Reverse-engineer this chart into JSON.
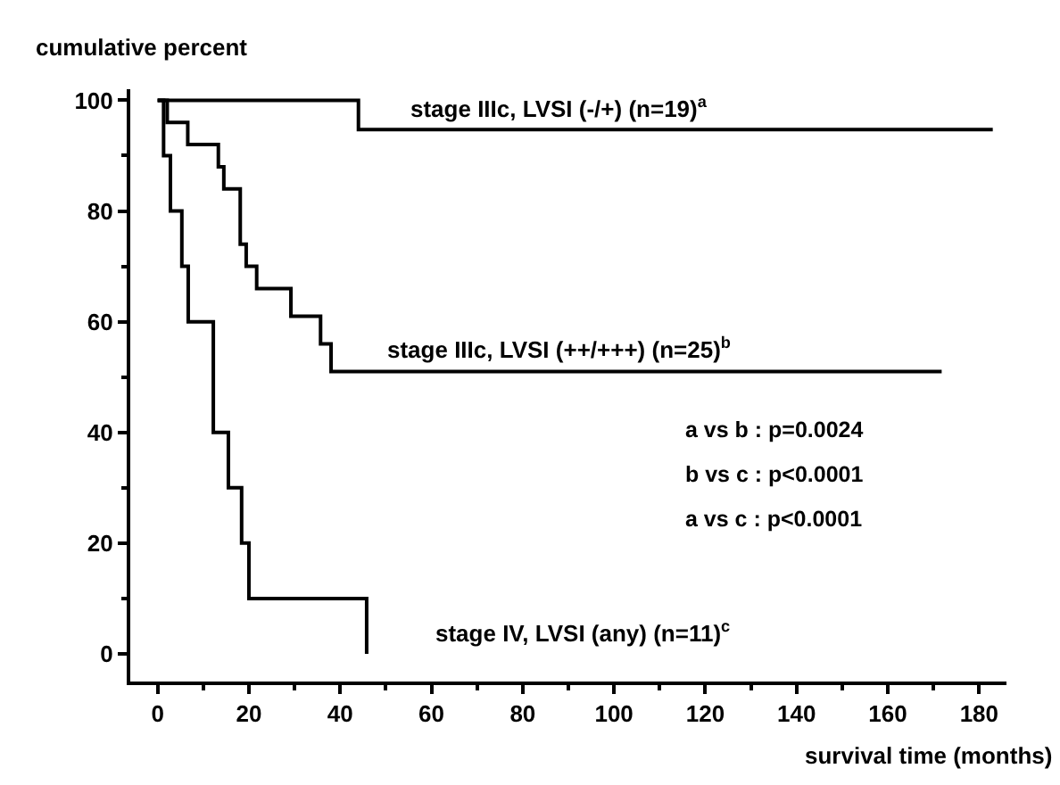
{
  "chart_data": {
    "type": "step",
    "ylabel": "cumulative percent",
    "xlabel": "survival time (months)",
    "series": [
      {
        "name": "stage IIIc, LVSI (-/+) (n=19)$^{a}$",
        "color": "#000000",
        "x": [
          0,
          44,
          183
        ],
        "values": [
          100,
          94.7,
          94.7
        ]
      },
      {
        "name": "stage IIIc, LVSI (++/+++) (n=25)$^{b}$",
        "color": "#000000",
        "x": [
          0,
          2.1,
          6.6,
          13.3,
          14.5,
          18.1,
          19.4,
          21.7,
          29.2,
          35.7,
          38.0,
          171.8
        ],
        "values": [
          100,
          96,
          92,
          88,
          84,
          74,
          70,
          66,
          61,
          56,
          51,
          51
        ]
      },
      {
        "name": "stage IV, LVSI (any) (n=11)$^{c}$",
        "color": "#000000",
        "x": [
          0,
          1.3,
          2.8,
          5.3,
          6.7,
          12.2,
          15.5,
          18.4,
          20.0,
          45.8
        ],
        "values": [
          100,
          90,
          80,
          70,
          60,
          40,
          30,
          20,
          10,
          0
        ]
      }
    ],
    "annotations": [
      "a vs b : p=0.0024",
      "b vs c : p<0.0001",
      "a vs c : p<0.0001"
    ],
    "xlim": [
      -6,
      186
    ],
    "xticks": [
      0,
      20,
      40,
      60,
      80,
      100,
      120,
      140,
      160,
      180
    ],
    "ylim": [
      -5,
      102
    ],
    "yticks": [
      0,
      20,
      40,
      60,
      80,
      100
    ],
    "legend": false,
    "marker": "none",
    "line_style": "solid"
  }
}
